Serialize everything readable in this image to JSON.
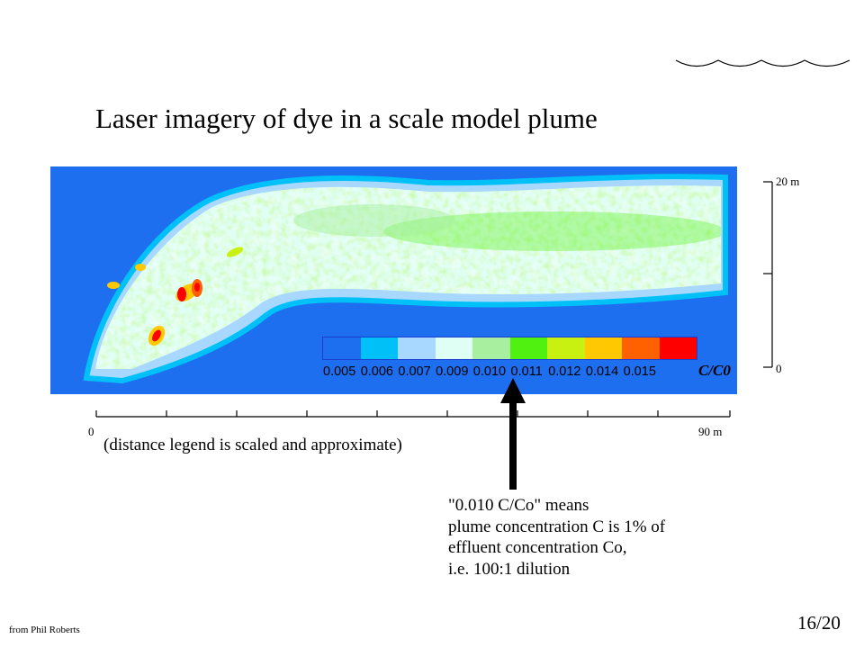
{
  "slide": {
    "title": "Laser imagery of dye in a scale model plume",
    "distance_note": "(distance legend is scaled and approximate)",
    "credit": "from Phil Roberts",
    "page_number": "16/20"
  },
  "colorbar": {
    "colors": [
      "#1e6ff0",
      "#00c0f8",
      "#a8d8ff",
      "#e0fff4",
      "#a8f0a0",
      "#50f010",
      "#c8f010",
      "#ffc800",
      "#ff6000",
      "#ff0000"
    ],
    "labels": [
      "0.005",
      "0.006",
      "0.007",
      "0.009",
      "0.010",
      "0.011",
      "0.012",
      "0.014",
      "0.015"
    ],
    "unit": "C/C0"
  },
  "vertical_scale": {
    "top_label": "20 m",
    "bottom_label": "0"
  },
  "horizontal_scale": {
    "left_label": "0",
    "right_label": "90 m"
  },
  "annotation": {
    "lines": [
      "\"0.010 C/Co\" means",
      "plume concentration C is 1% of",
      "effluent concentration Co,",
      "i.e. 100:1 dilution"
    ]
  },
  "plume_image": {
    "background_color": "#1e6ff0"
  }
}
